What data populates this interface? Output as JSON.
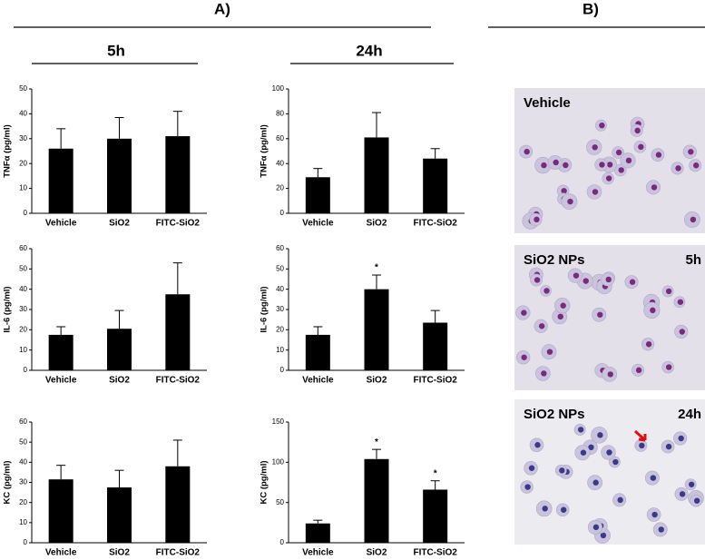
{
  "headers": {
    "panel_a": "A)",
    "panel_b": "B)",
    "time_5h": "5h",
    "time_24h": "24h"
  },
  "images": [
    {
      "label": "Vehicle"
    },
    {
      "label": "SiO2 NPs",
      "time": "5h"
    },
    {
      "label": "SiO2 NPs",
      "time": "24h"
    }
  ],
  "chart_data": [
    {
      "type": "bar",
      "ylabel": "TNFα (pg/ml)",
      "categories": [
        "Vehicle",
        "SiO2",
        "FITC-SiO2"
      ],
      "values": [
        26,
        30,
        31
      ],
      "errors": [
        8,
        8.5,
        10
      ],
      "color": "#000000",
      "ylim": [
        0,
        50
      ],
      "yticks": [
        0,
        10,
        20,
        30,
        40,
        50
      ]
    },
    {
      "type": "bar",
      "ylabel": "TNFα (pg/ml)",
      "categories": [
        "Vehicle",
        "SiO2",
        "FITC-SiO2"
      ],
      "values": [
        29,
        61,
        44
      ],
      "errors": [
        7,
        20,
        8
      ],
      "color": "#000000",
      "ylim": [
        0,
        100
      ],
      "yticks": [
        0,
        20,
        40,
        60,
        80,
        100
      ]
    },
    {
      "type": "bar",
      "ylabel": "IL-6 (pg/ml)",
      "categories": [
        "Vehicle",
        "SiO2",
        "FITC-SiO2"
      ],
      "values": [
        17.5,
        20.5,
        37.5
      ],
      "errors": [
        4,
        9,
        15.5
      ],
      "color": "#000000",
      "ylim": [
        0,
        60
      ],
      "yticks": [
        0,
        10,
        20,
        30,
        40,
        50,
        60
      ]
    },
    {
      "type": "bar",
      "ylabel": "IL-6 (pg/ml)",
      "categories": [
        "Vehicle",
        "SiO2",
        "FITC-SiO2"
      ],
      "values": [
        17.5,
        40,
        23.5
      ],
      "errors": [
        4,
        7,
        6
      ],
      "markers": [
        null,
        "*",
        null
      ],
      "color": "#000000",
      "ylim": [
        0,
        60
      ],
      "yticks": [
        0,
        10,
        20,
        30,
        40,
        50,
        60
      ]
    },
    {
      "type": "bar",
      "ylabel": "KC (pg/ml)",
      "categories": [
        "Vehicle",
        "SiO2",
        "FITC-SiO2"
      ],
      "values": [
        31.5,
        27.5,
        38
      ],
      "errors": [
        7,
        8.5,
        13
      ],
      "color": "#000000",
      "ylim": [
        0,
        60
      ],
      "yticks": [
        0,
        10,
        20,
        30,
        40,
        50,
        60
      ]
    },
    {
      "type": "bar",
      "ylabel": "KC (pg/ml)",
      "categories": [
        "Vehicle",
        "SiO2",
        "FITC-SiO2"
      ],
      "values": [
        24,
        104,
        66
      ],
      "errors": [
        4,
        12,
        11
      ],
      "markers": [
        null,
        "*",
        "*"
      ],
      "color": "#000000",
      "ylim": [
        0,
        150
      ],
      "yticks": [
        0,
        50,
        100,
        150
      ]
    }
  ]
}
